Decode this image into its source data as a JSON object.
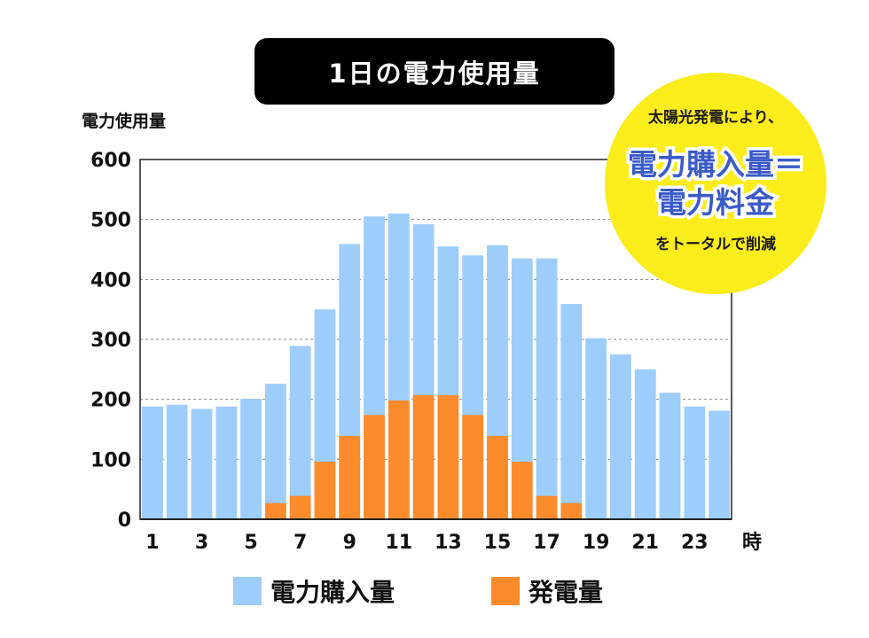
{
  "title": "1日の電力使用量",
  "colors": {
    "purchase": "#9dcdfa",
    "generation": "#fb8b2b",
    "callout_bg": "#fbec1c",
    "callout_text": "#3a5bc8"
  },
  "callout": {
    "line1": "太陽光発電により、",
    "line2": "電力購入量＝",
    "line3": "電力料金",
    "line4": "をトータルで削減"
  },
  "chart_data": {
    "type": "bar",
    "title": "1日の電力使用量",
    "ylabel": "電力使用量",
    "xlabel": "時",
    "ylim": [
      0,
      600
    ],
    "yticks": [
      0,
      100,
      200,
      300,
      400,
      500,
      600
    ],
    "x": [
      1,
      2,
      3,
      4,
      5,
      6,
      7,
      8,
      9,
      10,
      11,
      12,
      13,
      14,
      15,
      16,
      17,
      18,
      19,
      20,
      21,
      22,
      23,
      24
    ],
    "xtick_labels": [
      "1",
      "3",
      "5",
      "7",
      "9",
      "11",
      "13",
      "15",
      "17",
      "19",
      "21",
      "23"
    ],
    "series": [
      {
        "name": "電力購入量",
        "values": [
          188,
          191,
          184,
          188,
          201,
          226,
          289,
          350,
          459,
          505,
          510,
          492,
          455,
          440,
          457,
          435,
          435,
          359,
          302,
          275,
          250,
          211,
          188,
          181
        ]
      },
      {
        "name": "発電量",
        "values": [
          0,
          0,
          0,
          0,
          0,
          27,
          39,
          96,
          139,
          174,
          198,
          207,
          207,
          174,
          139,
          96,
          39,
          27,
          0,
          0,
          0,
          0,
          0,
          0
        ]
      }
    ],
    "legend": [
      "電力購入量",
      "発電量"
    ]
  }
}
